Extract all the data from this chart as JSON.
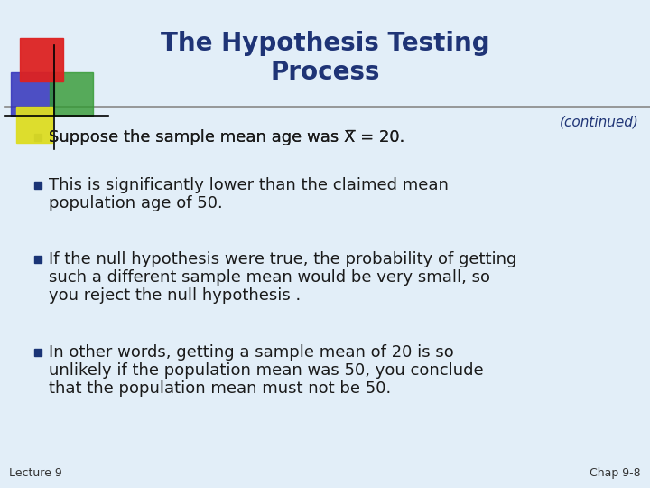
{
  "title_line1": "The Hypothesis Testing",
  "title_line2": "Process",
  "continued": "(continued)",
  "bg_color": "#e2eef8",
  "title_color": "#1f3476",
  "continued_color": "#1f3476",
  "text_color": "#1a1a1a",
  "footer_left": "Lecture 9",
  "footer_right": "Chap 9-8",
  "footer_color": "#333333",
  "bullet2_line1": "This is significantly lower than the claimed mean",
  "bullet2_line2": "population age of 50.",
  "bullet3_line1": "If the null hypothesis were true, the probability of getting",
  "bullet3_line2": "such a different sample mean would be very small, so",
  "bullet3_line3": "you reject the null hypothesis .",
  "bullet4_line1": "In other words, getting a sample mean of 20 is so",
  "bullet4_line2": "unlikely if the population mean was 50, you conclude",
  "bullet4_line3": "that the population mean must not be 50.",
  "divider_color": "#888888",
  "square_red": "#dd2222",
  "square_blue": "#3333bb",
  "square_green": "#339933",
  "square_yellow": "#dddd22",
  "bullet_square_color": "#1a3476",
  "title_fontsize": 20,
  "body_fontsize": 13,
  "footer_fontsize": 9
}
